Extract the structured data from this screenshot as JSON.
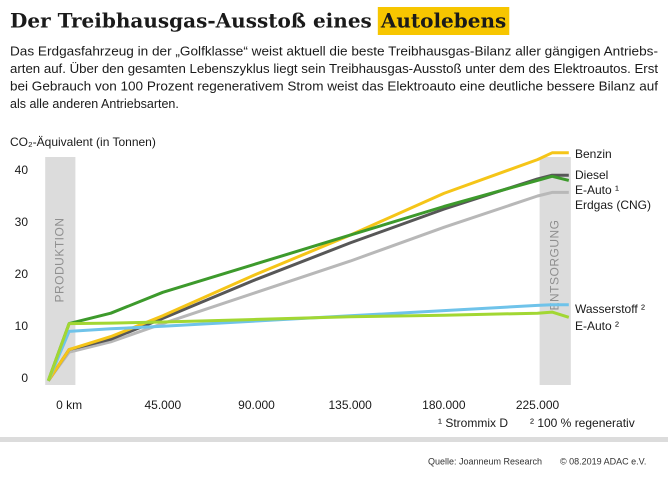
{
  "chart_data": {
    "type": "line",
    "title": "Der Treibhausgas-Ausstoß eines",
    "title_highlight": "Autolebens",
    "paragraph_lines": [
      "Das Erdgasfahrzeug in der „Golfklasse“ weist aktuell die beste Treibhausgas-Bilanz aller gängigen Antriebs-",
      "arten auf. Über den gesamten Lebenszyklus liegt sein Treibhausgas-Ausstoß unter dem des Elektroautos. Erst",
      "bei Gebrauch von 100 Prozent regenerativem Strom weist das Elektroauto eine deutliche bessere Bilanz auf",
      "als alle anderen Antriebsarten."
    ],
    "y_label": "CO₂-Äquivalent (in Tonnen)",
    "x": [
      -10000,
      0,
      20000,
      45000,
      90000,
      135000,
      180000,
      225000,
      232000,
      240000
    ],
    "series": [
      {
        "name": "Erdgas (CNG)",
        "color": "#b8b8b8",
        "values": [
          0,
          5.5,
          7.5,
          11,
          17,
          23,
          29.5,
          35.5,
          36.2,
          36.2
        ]
      },
      {
        "name": "Diesel",
        "color": "#575757",
        "values": [
          0,
          6,
          8,
          12,
          19.5,
          26.5,
          33,
          38.8,
          39.5,
          39.5
        ]
      },
      {
        "name": "Benzin",
        "color": "#f5c518",
        "values": [
          0,
          6,
          8.5,
          12.5,
          20.5,
          28,
          36,
          42.5,
          43.8,
          43.8
        ]
      },
      {
        "name": "E-Auto ¹",
        "color": "#3d9a2c",
        "values": [
          0,
          11,
          13,
          17,
          22.5,
          28,
          33.5,
          38.5,
          39.3,
          38.5
        ]
      },
      {
        "name": "Wasserstoff ²",
        "color": "#6fc3ea",
        "values": [
          0,
          9.5,
          10,
          10.5,
          11.5,
          12.5,
          13.5,
          14.5,
          14.6,
          14.6
        ]
      },
      {
        "name": "E-Auto ²",
        "color": "#a2d733",
        "values": [
          0,
          11,
          11.1,
          11.3,
          11.8,
          12.3,
          12.6,
          13,
          13.2,
          12.2
        ]
      }
    ],
    "bands": [
      {
        "label": "PRODUKTION",
        "range": [
          -11500,
          3000
        ]
      },
      {
        "label": "ENTSORGUNG",
        "range": [
          226000,
          241000
        ]
      }
    ],
    "xlim": [
      -14000,
      243000
    ],
    "ylim": [
      -0.8,
      43
    ],
    "xticks": [
      {
        "value": 0,
        "label": "0 km"
      },
      {
        "value": 45000,
        "label": "45.000"
      },
      {
        "value": 90000,
        "label": "90.000"
      },
      {
        "value": 135000,
        "label": "135.000"
      },
      {
        "value": 180000,
        "label": "180.000"
      },
      {
        "value": 225000,
        "label": "225.000"
      }
    ],
    "yticks": [
      0,
      10,
      20,
      30,
      40
    ],
    "grid": false,
    "footnotes": [
      "¹ Strommix D",
      "² 100 % regenerativ"
    ],
    "source": "Quelle:  Joanneum Research",
    "copyright": "© 08.2019 ADAC e.V."
  }
}
